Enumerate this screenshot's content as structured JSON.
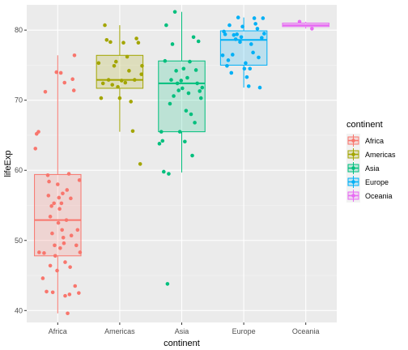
{
  "chart_data": {
    "type": "boxplot",
    "xlabel": "continent",
    "ylabel": "lifeExp",
    "ylim": [
      38.3,
      83.6
    ],
    "y_ticks": [
      40,
      50,
      60,
      70,
      80
    ],
    "grid": true,
    "legend_position": "right",
    "legend_title": "continent",
    "categories": [
      "Africa",
      "Americas",
      "Asia",
      "Europe",
      "Oceania"
    ],
    "colors": {
      "Africa": "#F8766D",
      "Americas": "#A3A500",
      "Asia": "#00BF7D",
      "Europe": "#00B0F6",
      "Oceania": "#E76BF3"
    },
    "boxes": [
      {
        "category": "Africa",
        "q1": 47.8,
        "median": 52.9,
        "q3": 59.4,
        "whisker_low": 39.6,
        "whisker_high": 76.4
      },
      {
        "category": "Americas",
        "q1": 71.7,
        "median": 72.9,
        "q3": 76.4,
        "whisker_low": 65.5,
        "whisker_high": 80.7
      },
      {
        "category": "Asia",
        "q1": 65.5,
        "median": 72.4,
        "q3": 75.6,
        "whisker_low": 59.7,
        "whisker_high": 82.6
      },
      {
        "category": "Europe",
        "q1": 75.0,
        "median": 78.6,
        "q3": 79.9,
        "whisker_low": 71.8,
        "whisker_high": 81.8
      },
      {
        "category": "Oceania",
        "q1": 80.5,
        "median": 80.7,
        "q3": 81.0,
        "whisker_low": 80.2,
        "whisker_high": 81.2
      }
    ],
    "points": [
      {
        "category": "Africa",
        "jitter": [
          -0.36,
          -0.34,
          -0.31,
          -0.3,
          -0.24,
          -0.22,
          -0.2,
          -0.18,
          -0.16,
          -0.15,
          -0.14,
          -0.12,
          -0.12,
          -0.1,
          -0.09,
          -0.08,
          -0.06,
          -0.05,
          -0.04,
          -0.02,
          -0.01,
          0,
          0.01,
          0.02,
          0.03,
          0.04,
          0.05,
          0.06,
          0.07,
          0.08,
          0.09,
          0.1,
          0.11,
          0.12,
          0.12,
          0.14,
          0.15,
          0.16,
          0.18,
          0.19,
          0.2,
          0.21,
          0.22,
          0.24,
          0.26,
          0.27,
          0.28,
          0.3,
          0.32,
          0.34,
          0.35,
          0.36
        ],
        "values": [
          63.1,
          65.2,
          65.5,
          48.3,
          44.6,
          48.2,
          71.2,
          42.7,
          59.3,
          56.4,
          58.4,
          53.4,
          46.4,
          54.9,
          51.0,
          42.6,
          55.3,
          49.3,
          47.8,
          74.0,
          45.7,
          58.0,
          52.5,
          56.1,
          54.5,
          48.9,
          73.9,
          55.3,
          51.5,
          56.7,
          50.4,
          49.6,
          72.5,
          42.1,
          46.9,
          52.9,
          57.2,
          39.6,
          59.5,
          42.3,
          46.2,
          56.0,
          50.7,
          73.0,
          71.4,
          76.4,
          43.5,
          49.3,
          51.5,
          42.5,
          58.6,
          48.3
        ]
      },
      {
        "category": "Americas",
        "jitter": [
          -0.34,
          -0.3,
          -0.27,
          -0.24,
          -0.21,
          -0.18,
          -0.15,
          -0.12,
          -0.09,
          -0.06,
          -0.03,
          0,
          0.03,
          0.06,
          0.09,
          0.12,
          0.15,
          0.18,
          0.21,
          0.24,
          0.27,
          0.3,
          0.33,
          0.35,
          0.36
        ],
        "values": [
          75.3,
          70.3,
          72.4,
          80.7,
          78.6,
          72.9,
          78.3,
          72.2,
          74.9,
          75.5,
          71.9,
          70.3,
          72.8,
          78.2,
          72.5,
          76.2,
          74.2,
          69.8,
          65.6,
          72.9,
          78.8,
          78.2,
          60.9,
          73.7,
          74.9
        ]
      },
      {
        "category": "Asia",
        "jitter": [
          -0.36,
          -0.33,
          -0.31,
          -0.29,
          -0.27,
          -0.25,
          -0.23,
          -0.21,
          -0.19,
          -0.17,
          -0.15,
          -0.13,
          -0.11,
          -0.09,
          -0.07,
          -0.05,
          -0.03,
          -0.01,
          0.01,
          0.03,
          0.05,
          0.07,
          0.09,
          0.11,
          0.13,
          0.15,
          0.17,
          0.19,
          0.21,
          0.23,
          0.25,
          0.27,
          0.29,
          0.31,
          0.33
        ],
        "values": [
          63.8,
          65.5,
          64.2,
          59.8,
          75.6,
          80.7,
          43.8,
          59.5,
          69.5,
          72.9,
          78.0,
          70.6,
          82.6,
          74.2,
          72.4,
          71.4,
          65.5,
          72.8,
          71.7,
          74.5,
          64.1,
          68.5,
          73.2,
          71.0,
          75.5,
          68.0,
          62.1,
          79.0,
          66.8,
          74.3,
          72.4,
          78.4,
          71.3,
          70.3,
          71.8
        ]
      },
      {
        "category": "Europe",
        "jitter": [
          -0.34,
          -0.32,
          -0.3,
          -0.27,
          -0.25,
          -0.23,
          -0.2,
          -0.18,
          -0.16,
          -0.13,
          -0.11,
          -0.09,
          -0.06,
          -0.04,
          -0.02,
          0.01,
          0.03,
          0.05,
          0.08,
          0.1,
          0.12,
          0.15,
          0.17,
          0.19,
          0.22,
          0.24,
          0.26,
          0.29,
          0.31,
          0.33
        ],
        "values": [
          76.4,
          79.8,
          79.4,
          74.9,
          75.7,
          80.7,
          73.9,
          76.5,
          79.3,
          78.7,
          79.4,
          81.8,
          78.3,
          79.0,
          80.5,
          74.5,
          75.3,
          73.3,
          72.0,
          74.5,
          78.0,
          76.8,
          81.7,
          80.9,
          80.2,
          76.1,
          71.8,
          78.9,
          81.7,
          79.5
        ]
      },
      {
        "category": "Oceania",
        "jitter": [
          -0.1,
          0.1
        ],
        "values": [
          81.2,
          80.2
        ]
      }
    ]
  }
}
